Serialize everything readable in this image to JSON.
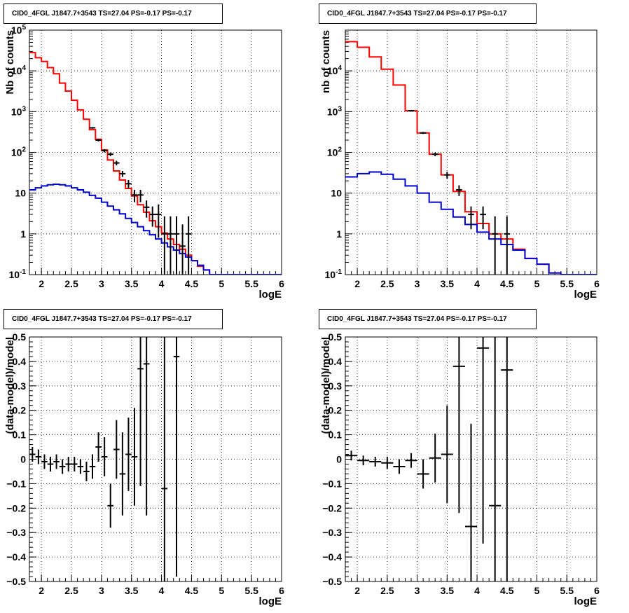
{
  "chart_data": [
    {
      "type": "line",
      "title": "CID0_4FGL J1847.7+3543 TS=27.04 PS=-0.17 PS=-0.17",
      "xlabel": "logE",
      "ylabel": "Nb of counts",
      "xlim": [
        1.8,
        6.0
      ],
      "ylim": [
        0.1,
        100000
      ],
      "yscale": "log",
      "grid": true,
      "x_ticks": [
        "2",
        "2.5",
        "3",
        "3.5",
        "4",
        "4.5",
        "5",
        "5.5",
        "6"
      ],
      "y_ticks": [
        "10^-1",
        "1",
        "10",
        "10^2",
        "10^3",
        "10^4",
        "10^5"
      ],
      "series": [
        {
          "color": "#ff0000",
          "style": "step",
          "bin_edges": [
            1.8,
            1.9,
            2.0,
            2.1,
            2.2,
            2.3,
            2.4,
            2.5,
            2.6,
            2.7,
            2.8,
            2.9,
            3.0,
            3.1,
            3.2,
            3.3,
            3.4,
            3.5,
            3.6,
            3.7,
            3.8,
            3.9,
            4.0,
            4.1,
            4.2,
            4.3,
            4.4,
            4.5,
            4.6,
            4.7,
            4.8,
            4.9,
            5.0,
            5.1,
            5.2,
            5.3,
            5.4,
            5.5,
            5.6,
            5.7,
            5.8,
            5.9,
            6.0
          ],
          "values": [
            28000,
            21000,
            17000,
            12000,
            8500,
            5000,
            3200,
            1900,
            1100,
            650,
            360,
            210,
            115,
            65,
            35,
            21,
            13,
            8.5,
            5.2,
            3.4,
            2.1,
            1.5,
            1.05,
            0.75,
            0.55,
            0.42,
            0.3,
            0.22,
            0.16,
            0.13,
            0.1,
            0.1,
            0.1,
            0.1,
            0.1,
            0.1,
            0.1,
            0.1,
            0.1,
            0.1,
            0.1,
            0.1
          ]
        },
        {
          "color": "#0000cc",
          "style": "step",
          "bin_edges": [
            1.8,
            1.9,
            2.0,
            2.1,
            2.2,
            2.3,
            2.4,
            2.5,
            2.6,
            2.7,
            2.8,
            2.9,
            3.0,
            3.1,
            3.2,
            3.3,
            3.4,
            3.5,
            3.6,
            3.7,
            3.8,
            3.9,
            4.0,
            4.1,
            4.2,
            4.3,
            4.4,
            4.5,
            4.6,
            4.7,
            4.8,
            4.9,
            5.0,
            5.1,
            5.2,
            5.3,
            5.4,
            5.5,
            5.6,
            5.7,
            5.8,
            5.9,
            6.0
          ],
          "values": [
            12,
            13.5,
            15,
            16,
            16.5,
            16,
            15,
            13.5,
            12,
            10.5,
            8.8,
            7.5,
            6,
            4.8,
            3.9,
            3.1,
            2.4,
            1.9,
            1.5,
            1.2,
            0.95,
            0.75,
            0.6,
            0.48,
            0.4,
            0.33,
            0.27,
            0.22,
            0.17,
            0.13,
            0.1,
            0.1,
            0.1,
            0.1,
            0.1,
            0.1,
            0.1,
            0.1,
            0.1,
            0.1,
            0.1,
            0.1
          ]
        },
        {
          "style": "errorbar",
          "color": "#000000",
          "x": [
            2.85,
            2.95,
            3.05,
            3.15,
            3.25,
            3.35,
            3.45,
            3.55,
            3.65,
            3.75,
            3.85,
            3.95,
            4.05,
            4.15,
            4.25,
            4.35,
            4.45
          ],
          "y": [
            400,
            200,
            110,
            90,
            55,
            30,
            17,
            9,
            9,
            4.5,
            3,
            3,
            1,
            1,
            1,
            0.5,
            1
          ],
          "err_low": [
            20,
            14,
            10,
            9,
            7,
            5,
            4,
            3,
            3,
            2,
            1.5,
            2.2,
            1.0,
            1.0,
            1.0,
            0.5,
            1.0
          ],
          "err_high": [
            20,
            14,
            10,
            9,
            7,
            5,
            4,
            3,
            3,
            2.1,
            1.7,
            2.3,
            1.7,
            1.7,
            1.7,
            1.2,
            1.7
          ]
        }
      ]
    },
    {
      "type": "line",
      "title": "CID0_4FGL J1847.7+3543 TS=27.04 PS=-0.17 PS=-0.17",
      "xlabel": "logE",
      "ylabel": "nb of counts",
      "xlim": [
        1.8,
        6.0
      ],
      "ylim": [
        0.1,
        100000
      ],
      "yscale": "log",
      "grid": true,
      "x_ticks": [
        "2",
        "2.5",
        "3",
        "3.5",
        "4",
        "4.5",
        "5",
        "5.5",
        "6"
      ],
      "y_ticks": [
        "10^-1",
        "1",
        "10",
        "10^2",
        "10^3",
        "10^4"
      ],
      "series": [
        {
          "color": "#ff0000",
          "style": "step",
          "bin_edges": [
            1.8,
            2.0,
            2.2,
            2.4,
            2.6,
            2.8,
            3.0,
            3.2,
            3.4,
            3.6,
            3.8,
            4.0,
            4.2,
            4.4,
            4.6,
            4.8,
            5.0,
            5.2,
            5.4,
            5.6,
            5.8,
            6.0
          ],
          "values": [
            52000,
            38000,
            22000,
            11000,
            4500,
            1050,
            300,
            90,
            28,
            11,
            3.5,
            1.8,
            1.0,
            0.75,
            0.42,
            0.25,
            0.18,
            0.11,
            0.1,
            0.1,
            0.1
          ]
        },
        {
          "color": "#0000cc",
          "style": "step",
          "bin_edges": [
            1.8,
            2.0,
            2.2,
            2.4,
            2.6,
            2.8,
            3.0,
            3.2,
            3.4,
            3.6,
            3.8,
            4.0,
            4.2,
            4.4,
            4.6,
            4.8,
            5.0,
            5.2,
            5.4,
            5.6,
            5.8,
            6.0
          ],
          "values": [
            25,
            30,
            33,
            29,
            22,
            15,
            10,
            6,
            4,
            2.6,
            1.7,
            1.1,
            0.75,
            0.55,
            0.4,
            0.25,
            0.18,
            0.11,
            0.1,
            0.1,
            0.1
          ]
        },
        {
          "style": "errorbar",
          "color": "#000000",
          "x": [
            2.9,
            3.1,
            3.3,
            3.5,
            3.7,
            3.9,
            4.1,
            4.3,
            4.5
          ],
          "y": [
            1050,
            300,
            90,
            28,
            12,
            3,
            3,
            1,
            1
          ],
          "err_low": [
            32,
            17,
            9.5,
            5.3,
            3.5,
            1.7,
            1.7,
            1.0,
            1.0
          ],
          "err_high": [
            32,
            17,
            9.5,
            5.3,
            3.5,
            1.7,
            1.7,
            1.7,
            1.7
          ]
        }
      ]
    },
    {
      "type": "scatter",
      "title": "CID0_4FGL J1847.7+3543 TS=27.04 PS=-0.17 PS=-0.17",
      "xlabel": "logE",
      "ylabel": "(data-model)/model",
      "xlim": [
        1.8,
        6.0
      ],
      "ylim": [
        -0.5,
        0.5
      ],
      "grid": true,
      "x_ticks": [
        "2",
        "2.5",
        "3",
        "3.5",
        "4",
        "4.5",
        "5",
        "5.5",
        "6"
      ],
      "y_ticks": [
        "−0.5",
        "−0.4",
        "−0.3",
        "−0.2",
        "−0.1",
        "0",
        "0.1",
        "0.2",
        "0.3",
        "0.4",
        "0.5"
      ],
      "series": [
        {
          "style": "errorbar",
          "color": "#000000",
          "x": [
            1.85,
            1.95,
            2.05,
            2.15,
            2.25,
            2.35,
            2.45,
            2.55,
            2.65,
            2.75,
            2.85,
            2.95,
            3.05,
            3.15,
            3.25,
            3.35,
            3.45,
            3.55,
            3.65,
            3.75,
            4.05,
            4.25
          ],
          "y": [
            0.02,
            0.01,
            -0.01,
            -0.02,
            -0.01,
            -0.03,
            -0.02,
            -0.02,
            -0.03,
            -0.05,
            -0.03,
            0.05,
            0.01,
            -0.19,
            0.04,
            -0.06,
            0.02,
            0.01,
            0.37,
            0.39,
            -0.12,
            0.42
          ],
          "xerr": 0.05,
          "yerr": [
            0.03,
            0.03,
            0.03,
            0.03,
            0.03,
            0.03,
            0.03,
            0.03,
            0.03,
            0.04,
            0.05,
            0.06,
            0.08,
            0.09,
            0.12,
            0.17,
            0.15,
            0.2,
            0.48,
            0.62,
            0.9,
            0.9
          ]
        }
      ]
    },
    {
      "type": "scatter",
      "title": "CID0_4FGL J1847.7+3543 TS=27.04 PS=-0.17 PS=-0.17",
      "xlabel": "logE",
      "ylabel": "(data-model)/model",
      "xlim": [
        1.8,
        6.0
      ],
      "ylim": [
        -0.5,
        0.5
      ],
      "grid": true,
      "x_ticks": [
        "2",
        "2.5",
        "3",
        "3.5",
        "4",
        "4.5",
        "5",
        "5.5",
        "6"
      ],
      "y_ticks": [
        "−0.5",
        "−0.4",
        "−0.3",
        "−0.2",
        "−0.1",
        "0",
        "0.1",
        "0.2",
        "0.3",
        "0.4",
        "0.5"
      ],
      "series": [
        {
          "style": "errorbar",
          "color": "#000000",
          "x": [
            1.9,
            2.1,
            2.3,
            2.5,
            2.7,
            2.9,
            3.1,
            3.3,
            3.5,
            3.7,
            3.9,
            4.1,
            4.3,
            4.5
          ],
          "y": [
            0.015,
            -0.005,
            -0.01,
            -0.015,
            -0.03,
            -0.005,
            -0.06,
            0.005,
            0.02,
            0.38,
            -0.275,
            0.455,
            -0.19,
            0.365
          ],
          "xerr": 0.1,
          "yerr": [
            0.02,
            0.02,
            0.02,
            0.025,
            0.03,
            0.03,
            0.06,
            0.1,
            0.2,
            0.6,
            0.42,
            0.8,
            0.9,
            0.9
          ]
        }
      ]
    }
  ]
}
